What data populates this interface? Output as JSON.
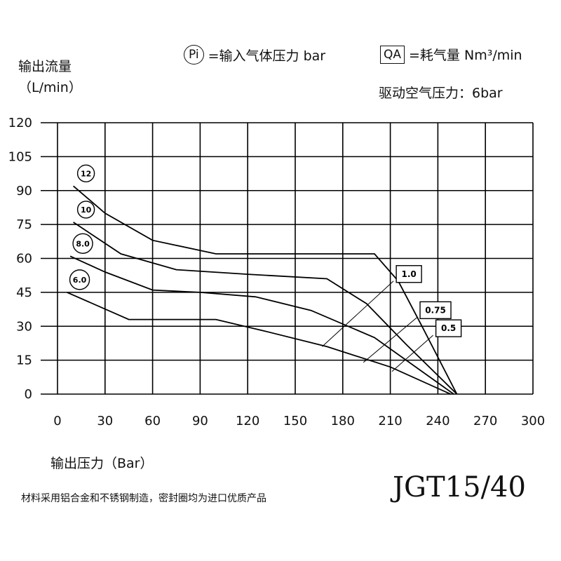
{
  "header": {
    "y_axis_title": "输出流量",
    "y_axis_unit": "（L/min）",
    "legend_pi_symbol": "Pi",
    "legend_pi_text": "=输入气体压力 bar",
    "legend_qa_symbol": "QA",
    "legend_qa_text": "=耗气量 Nm³/min",
    "drive_pressure": "驱动空气压力：6bar"
  },
  "footer": {
    "x_axis_title": "输出压力（Bar）",
    "note": "材料采用铝合金和不锈钢制造，密封圈均为进口优质产品",
    "model": "JGT15/40"
  },
  "chart_data": {
    "type": "line",
    "xlim": [
      0,
      300
    ],
    "ylim": [
      0,
      120
    ],
    "x_ticks": [
      "0",
      "30",
      "60",
      "90",
      "120",
      "150",
      "180",
      "210",
      "240",
      "270",
      "300"
    ],
    "y_ticks": [
      "0",
      "15",
      "30",
      "45",
      "60",
      "75",
      "90",
      "105",
      "120"
    ],
    "grid": true,
    "series": [
      {
        "name": "12",
        "points": [
          [
            10,
            92
          ],
          [
            30,
            80
          ],
          [
            60,
            68
          ],
          [
            100,
            62
          ],
          [
            200,
            62
          ],
          [
            215,
            50
          ],
          [
            230,
            30
          ],
          [
            252,
            0
          ]
        ]
      },
      {
        "name": "10",
        "points": [
          [
            10,
            76
          ],
          [
            40,
            62
          ],
          [
            75,
            55
          ],
          [
            120,
            53
          ],
          [
            170,
            51
          ],
          [
            195,
            40
          ],
          [
            220,
            22
          ],
          [
            252,
            0
          ]
        ]
      },
      {
        "name": "8.0",
        "points": [
          [
            8,
            61
          ],
          [
            30,
            54
          ],
          [
            60,
            46
          ],
          [
            90,
            45
          ],
          [
            125,
            43
          ],
          [
            160,
            37
          ],
          [
            200,
            25
          ],
          [
            250,
            0
          ]
        ]
      },
      {
        "name": "6.0",
        "points": [
          [
            6,
            45
          ],
          [
            45,
            33
          ],
          [
            100,
            33
          ],
          [
            130,
            28
          ],
          [
            170,
            21
          ],
          [
            210,
            12
          ],
          [
            248,
            0
          ]
        ]
      }
    ],
    "consumption_lines": [
      {
        "label": "1.0",
        "points": [
          [
            167,
            21
          ],
          [
            212,
            50
          ]
        ]
      },
      {
        "label": "0.75",
        "points": [
          [
            193,
            14
          ],
          [
            227,
            34
          ]
        ]
      },
      {
        "label": "0.5",
        "points": [
          [
            211,
            10
          ],
          [
            237,
            26
          ]
        ]
      }
    ]
  }
}
